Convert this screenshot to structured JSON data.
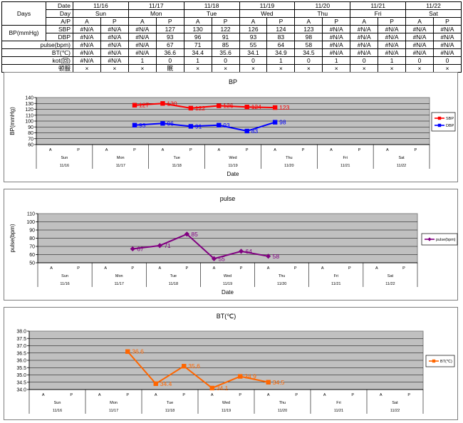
{
  "table": {
    "header": {
      "date_label": "Date",
      "day_label": "Day",
      "ap_label": "A/P",
      "days_label": "Days",
      "dates": [
        "11/16",
        "11/17",
        "11/18",
        "11/19",
        "11/20",
        "11/21",
        "11/22"
      ],
      "days": [
        "Sun",
        "Mon",
        "Tue",
        "Wed",
        "Thu",
        "Fri",
        "Sat"
      ],
      "ap": [
        "A",
        "P",
        "A",
        "P",
        "A",
        "P",
        "A",
        "P",
        "A",
        "P",
        "A",
        "P",
        "A",
        "P"
      ]
    },
    "bp_group_label": "BP(mmHg)",
    "rows": [
      {
        "label": "SBP",
        "values": [
          "#N/A",
          "#N/A",
          "#N/A",
          "127",
          "130",
          "122",
          "126",
          "124",
          "123",
          "#N/A",
          "#N/A",
          "#N/A",
          "#N/A",
          "#N/A"
        ]
      },
      {
        "label": "DBP",
        "values": [
          "#N/A",
          "#N/A",
          "#N/A",
          "93",
          "96",
          "91",
          "93",
          "83",
          "98",
          "#N/A",
          "#N/A",
          "#N/A",
          "#N/A",
          "#N/A"
        ]
      },
      {
        "label": "pulse(bpm)",
        "values": [
          "#N/A",
          "#N/A",
          "#N/A",
          "67",
          "71",
          "85",
          "55",
          "64",
          "58",
          "#N/A",
          "#N/A",
          "#N/A",
          "#N/A",
          "#N/A"
        ]
      },
      {
        "label": "BT(℃)",
        "values": [
          "#N/A",
          "#N/A",
          "#N/A",
          "36.6",
          "34.4",
          "35.6",
          "34.1",
          "34.9",
          "34.5",
          "#N/A",
          "#N/A",
          "#N/A",
          "#N/A",
          "#N/A"
        ]
      },
      {
        "label": "kot(回)",
        "values": [
          "#N/A",
          "#N/A",
          "1",
          "0",
          "1",
          "0",
          "0",
          "1",
          "0",
          "1",
          "0",
          "1",
          "0",
          "0"
        ]
      },
      {
        "label": "顿服",
        "values": [
          "×",
          "×",
          "×",
          "眠",
          "×",
          "×",
          "×",
          "×",
          "×",
          "×",
          "×",
          "×",
          "×",
          "×"
        ]
      }
    ]
  },
  "chart_data": [
    {
      "type": "line",
      "title": "BP",
      "xlabel": "Date",
      "ylabel": "BP(mmHg)",
      "ylim": [
        60,
        140
      ],
      "yticks": [
        60,
        70,
        80,
        90,
        100,
        110,
        120,
        130,
        140
      ],
      "grid": "horizontal",
      "legend": "right",
      "categories": [
        "A",
        "P",
        "A",
        "P",
        "A",
        "P",
        "A",
        "P",
        "A",
        "P",
        "A",
        "P",
        "A",
        "P"
      ],
      "days": [
        "Sun",
        "Mon",
        "Tue",
        "Wed",
        "Thu",
        "Fri",
        "Sat"
      ],
      "dates": [
        "11/16",
        "11/17",
        "11/18",
        "11/19",
        "11/20",
        "11/21",
        "11/22"
      ],
      "series": [
        {
          "name": "SBP",
          "color": "#ff0000",
          "marker": "square",
          "values": [
            null,
            null,
            null,
            127,
            130,
            122,
            126,
            124,
            123,
            null,
            null,
            null,
            null,
            null
          ]
        },
        {
          "name": "DBP",
          "color": "#0000ff",
          "marker": "square",
          "values": [
            null,
            null,
            null,
            93,
            96,
            91,
            93,
            83,
            98,
            null,
            null,
            null,
            null,
            null
          ]
        }
      ]
    },
    {
      "type": "line",
      "title": "pulse",
      "xlabel": "Date",
      "ylabel": "pulse(bpm)",
      "ylim": [
        50,
        110
      ],
      "yticks": [
        50,
        60,
        70,
        80,
        90,
        100,
        110
      ],
      "grid": "horizontal",
      "legend": "right",
      "categories": [
        "A",
        "P",
        "A",
        "P",
        "A",
        "P",
        "A",
        "P",
        "A",
        "P",
        "A",
        "P",
        "A",
        "P"
      ],
      "days": [
        "Sun",
        "Mon",
        "Tue",
        "Wed",
        "Thu",
        "Fri",
        "Sat"
      ],
      "dates": [
        "11/16",
        "11/17",
        "11/18",
        "11/19",
        "11/20",
        "11/21",
        "11/22"
      ],
      "series": [
        {
          "name": "pulse(bpm)",
          "color": "#800080",
          "marker": "diamond",
          "values": [
            null,
            null,
            null,
            67,
            71,
            85,
            55,
            64,
            58,
            null,
            null,
            null,
            null,
            null
          ]
        }
      ]
    },
    {
      "type": "line",
      "title": "BT(℃)",
      "xlabel": "",
      "ylabel": "",
      "ylim": [
        34.0,
        38.0
      ],
      "yticks": [
        "34.0",
        "34.5",
        "35.0",
        "35.5",
        "36.0",
        "36.5",
        "37.0",
        "37.5",
        "38.0"
      ],
      "grid": "horizontal",
      "legend": "right",
      "categories": [
        "A",
        "P",
        "A",
        "P",
        "A",
        "P",
        "A",
        "P",
        "A",
        "P",
        "A",
        "P",
        "A",
        "P"
      ],
      "days": [
        "Sun",
        "Mon",
        "Tue",
        "Wed",
        "Thu",
        "Fri",
        "Sat"
      ],
      "dates": [
        "11/16",
        "11/17",
        "11/18",
        "11/19",
        "11/20",
        "11/21",
        "11/22"
      ],
      "series": [
        {
          "name": "BT(℃)",
          "color": "#ff6600",
          "marker": "square",
          "values": [
            null,
            null,
            null,
            36.6,
            34.4,
            35.6,
            34.1,
            34.9,
            34.5,
            null,
            null,
            null,
            null,
            null
          ]
        }
      ]
    }
  ]
}
